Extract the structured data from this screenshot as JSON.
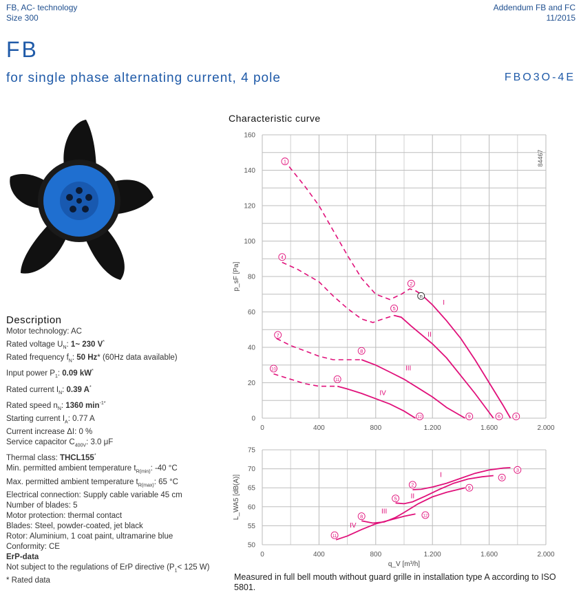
{
  "header": {
    "left_line1": "FB, AC- technology",
    "left_line2": "Size 300",
    "right_line1": "Addendum FB and FC",
    "right_line2": "11/2015"
  },
  "title": "FB",
  "subtitle": "for single phase alternating current, 4 pole",
  "model": "FBO3O-4E",
  "chart_title": "Characteristic curve",
  "figure_id": "84467",
  "product_image": {
    "description_icon": "fan-icon",
    "blade_color": "#111111",
    "rotor_color": "#1f6fd0"
  },
  "description": {
    "heading": "Description",
    "lines": [
      [
        {
          "t": "Motor technology: AC"
        }
      ],
      [
        {
          "t": "Rated voltage U"
        },
        {
          "t": "N",
          "sub": true
        },
        {
          "t": ": "
        },
        {
          "t": "1~ 230 V",
          "b": true
        },
        {
          "t": "*",
          "sup": true
        }
      ],
      [
        {
          "t": "Rated frequency f"
        },
        {
          "t": "N",
          "sub": true
        },
        {
          "t": ": "
        },
        {
          "t": "50 Hz",
          "b": true
        },
        {
          "t": "* (60Hz data available)"
        }
      ],
      [
        {
          "t": "Input power P"
        },
        {
          "t": "1",
          "sub": true
        },
        {
          "t": ": "
        },
        {
          "t": "0.09 kW",
          "b": true
        },
        {
          "t": "*",
          "sup": true
        }
      ],
      [
        {
          "t": "Rated current I"
        },
        {
          "t": "N",
          "sub": true
        },
        {
          "t": ": "
        },
        {
          "t": "0.39 A",
          "b": true
        },
        {
          "t": "*",
          "sup": true
        }
      ],
      [
        {
          "t": "Rated speed n"
        },
        {
          "t": "N",
          "sub": true
        },
        {
          "t": ": "
        },
        {
          "t": "1360 min",
          "b": true
        },
        {
          "t": "-1*",
          "sup": true
        }
      ],
      [
        {
          "t": "Starting current I"
        },
        {
          "t": "A",
          "sub": true
        },
        {
          "t": ": 0.77 A"
        }
      ],
      [
        {
          "t": "Current increase ΔI: 0 %"
        }
      ],
      [
        {
          "t": "Service capacitor C"
        },
        {
          "t": "400V",
          "sub": true
        },
        {
          "t": ": 3.0 μF"
        }
      ],
      [
        {
          "t": "Thermal class: "
        },
        {
          "t": "THCL155",
          "b": true
        },
        {
          "t": "*",
          "sup": true
        }
      ],
      [
        {
          "t": "Min. permitted ambient temperature t"
        },
        {
          "t": "R(min)",
          "sub": true
        },
        {
          "t": ": -40 °C"
        }
      ],
      [
        {
          "t": "Max. permitted ambient temperature t"
        },
        {
          "t": "R(max)",
          "sub": true
        },
        {
          "t": ": 65 °C"
        }
      ],
      [
        {
          "t": "Electrical connection: Supply cable variable 45 cm"
        }
      ],
      [
        {
          "t": "Number of blades: 5"
        }
      ],
      [
        {
          "t": "Motor protection: thermal contact"
        }
      ],
      [
        {
          "t": "Blades: Steel, powder-coated, jet black"
        }
      ],
      [
        {
          "t": "Rotor: Aluminium, 1 coat paint, ultramarine blue"
        }
      ],
      [
        {
          "t": "Conformity:  CE"
        }
      ],
      [
        {
          "t": "ErP-data",
          "b": true
        }
      ],
      [
        {
          "t": "Not subject to the regulations of ErP directive (P"
        },
        {
          "t": "1",
          "sub": true
        },
        {
          "t": "< 125 W)"
        }
      ],
      [
        {
          "t": "* Rated data"
        }
      ]
    ]
  },
  "note": "Measured in full bell mouth without guard grille in installation type A according to ISO 5801.",
  "chart_data": [
    {
      "type": "line",
      "ylabel": "p_sF [Pa]",
      "xlim": [
        0,
        2000
      ],
      "ylim": [
        0,
        160
      ],
      "xticks": [
        "0",
        "400",
        "800",
        "1.200",
        "1.600",
        "2.000"
      ],
      "yticks": [
        "0",
        "20",
        "40",
        "60",
        "80",
        "100",
        "120",
        "140",
        "160"
      ],
      "grid": true,
      "color": "#e0107a",
      "series": [
        {
          "name": "I",
          "dashed": [
            [
              190,
              142
            ],
            [
              300,
              131
            ],
            [
              400,
              120
            ],
            [
              500,
              106
            ],
            [
              600,
              92
            ],
            [
              700,
              79
            ],
            [
              800,
              70
            ],
            [
              900,
              67
            ],
            [
              980,
              70
            ],
            [
              1040,
              73
            ],
            [
              1080,
              72
            ]
          ],
          "solid": [
            [
              1080,
              72
            ],
            [
              1120,
              70
            ],
            [
              1200,
              64
            ],
            [
              1300,
              55
            ],
            [
              1400,
              45
            ],
            [
              1500,
              33
            ],
            [
              1600,
              20
            ],
            [
              1700,
              7
            ],
            [
              1750,
              0
            ]
          ]
        },
        {
          "name": "II",
          "dashed": [
            [
              140,
              88
            ],
            [
              250,
              84
            ],
            [
              400,
              77
            ],
            [
              500,
              69
            ],
            [
              600,
              62
            ],
            [
              700,
              56
            ],
            [
              780,
              54
            ],
            [
              850,
              56
            ],
            [
              930,
              58
            ]
          ],
          "solid": [
            [
              930,
              58
            ],
            [
              980,
              57
            ],
            [
              1050,
              52
            ],
            [
              1200,
              42
            ],
            [
              1300,
              34
            ],
            [
              1400,
              24
            ],
            [
              1500,
              14
            ],
            [
              1630,
              0
            ]
          ]
        },
        {
          "name": "III",
          "dashed": [
            [
              100,
              45
            ],
            [
              200,
              41
            ],
            [
              300,
              38
            ],
            [
              400,
              35
            ],
            [
              500,
              33
            ],
            [
              600,
              33
            ],
            [
              700,
              33
            ]
          ],
          "solid": [
            [
              700,
              33
            ],
            [
              800,
              30
            ],
            [
              900,
              26
            ],
            [
              1000,
              22
            ],
            [
              1100,
              17
            ],
            [
              1200,
              12
            ],
            [
              1300,
              6
            ],
            [
              1430,
              0
            ]
          ]
        },
        {
          "name": "IV",
          "dashed": [
            [
              80,
              25
            ],
            [
              200,
              22
            ],
            [
              300,
              19.5
            ],
            [
              400,
              18
            ],
            [
              530,
              18
            ]
          ],
          "solid": [
            [
              530,
              18
            ],
            [
              600,
              16.5
            ],
            [
              700,
              14
            ],
            [
              800,
              11
            ],
            [
              900,
              8
            ],
            [
              1000,
              4
            ],
            [
              1080,
              0
            ]
          ]
        }
      ],
      "point_labels": [
        {
          "t": "1",
          "x": 160,
          "y": 145
        },
        {
          "t": "2",
          "x": 1050,
          "y": 76
        },
        {
          "t": "3",
          "x": 1790,
          "y": 1
        },
        {
          "t": "4",
          "x": 140,
          "y": 91
        },
        {
          "t": "5",
          "x": 930,
          "y": 62
        },
        {
          "t": "6",
          "x": 1670,
          "y": 1
        },
        {
          "t": "7",
          "x": 110,
          "y": 47
        },
        {
          "t": "8",
          "x": 700,
          "y": 38
        },
        {
          "t": "9",
          "x": 1460,
          "y": 1
        },
        {
          "t": "10",
          "x": 80,
          "y": 28
        },
        {
          "t": "11",
          "x": 530,
          "y": 22
        },
        {
          "t": "12",
          "x": 1110,
          "y": 1
        },
        {
          "t": "n",
          "x": 1120,
          "y": 69,
          "black": true
        }
      ],
      "curve_labels": [
        {
          "t": "I",
          "x": 1280,
          "y": 64
        },
        {
          "t": "II",
          "x": 1180,
          "y": 46
        },
        {
          "t": "III",
          "x": 1030,
          "y": 27
        },
        {
          "t": "IV",
          "x": 850,
          "y": 13
        }
      ]
    },
    {
      "type": "line",
      "xlabel": "q_V [m³/h]",
      "ylabel": "L_WA5 [dB(A)]",
      "xlim": [
        0,
        2000
      ],
      "ylim": [
        50,
        75
      ],
      "xticks": [
        "0",
        "400",
        "800",
        "1.200",
        "1.600",
        "2.000"
      ],
      "yticks": [
        "50",
        "55",
        "60",
        "65",
        "70",
        "75"
      ],
      "grid": true,
      "color": "#e0107a",
      "series": [
        {
          "name": "I",
          "solid": [
            [
              1060,
              64.5
            ],
            [
              1120,
              64.6
            ],
            [
              1200,
              65.2
            ],
            [
              1300,
              66.2
            ],
            [
              1400,
              67.5
            ],
            [
              1500,
              68.8
            ],
            [
              1600,
              69.7
            ],
            [
              1700,
              70.2
            ],
            [
              1750,
              70.3
            ]
          ]
        },
        {
          "name": "II",
          "solid": [
            [
              940,
              61
            ],
            [
              1000,
              60.8
            ],
            [
              1060,
              61.3
            ],
            [
              1150,
              62.8
            ],
            [
              1250,
              64.6
            ],
            [
              1350,
              66.2
            ],
            [
              1450,
              67.3
            ],
            [
              1550,
              67.9
            ],
            [
              1630,
              68.2
            ]
          ]
        },
        {
          "name": "III",
          "solid": [
            [
              700,
              56.3
            ],
            [
              780,
              55.7
            ],
            [
              860,
              56
            ],
            [
              940,
              57.2
            ],
            [
              1000,
              58.5
            ],
            [
              1100,
              60.8
            ],
            [
              1200,
              62.6
            ],
            [
              1300,
              63.8
            ],
            [
              1430,
              65
            ]
          ]
        },
        {
          "name": "IV",
          "solid": [
            [
              520,
              51.3
            ],
            [
              600,
              52.3
            ],
            [
              700,
              54
            ],
            [
              800,
              55.5
            ],
            [
              900,
              56.5
            ],
            [
              1000,
              57.5
            ],
            [
              1080,
              58.1
            ]
          ]
        }
      ],
      "point_labels": [
        {
          "t": "2",
          "x": 1060,
          "y": 65.8
        },
        {
          "t": "3",
          "x": 1800,
          "y": 69.7
        },
        {
          "t": "5",
          "x": 940,
          "y": 62.2
        },
        {
          "t": "6",
          "x": 1690,
          "y": 67.7
        },
        {
          "t": "8",
          "x": 700,
          "y": 57.5
        },
        {
          "t": "9",
          "x": 1460,
          "y": 65
        },
        {
          "t": "11",
          "x": 510,
          "y": 52.5
        },
        {
          "t": "12",
          "x": 1150,
          "y": 57.8
        }
      ],
      "curve_labels": [
        {
          "t": "I",
          "x": 1260,
          "y": 67.8
        },
        {
          "t": "II",
          "x": 1060,
          "y": 62.2
        },
        {
          "t": "III",
          "x": 860,
          "y": 58.2
        },
        {
          "t": "IV",
          "x": 640,
          "y": 54.5
        }
      ]
    }
  ]
}
